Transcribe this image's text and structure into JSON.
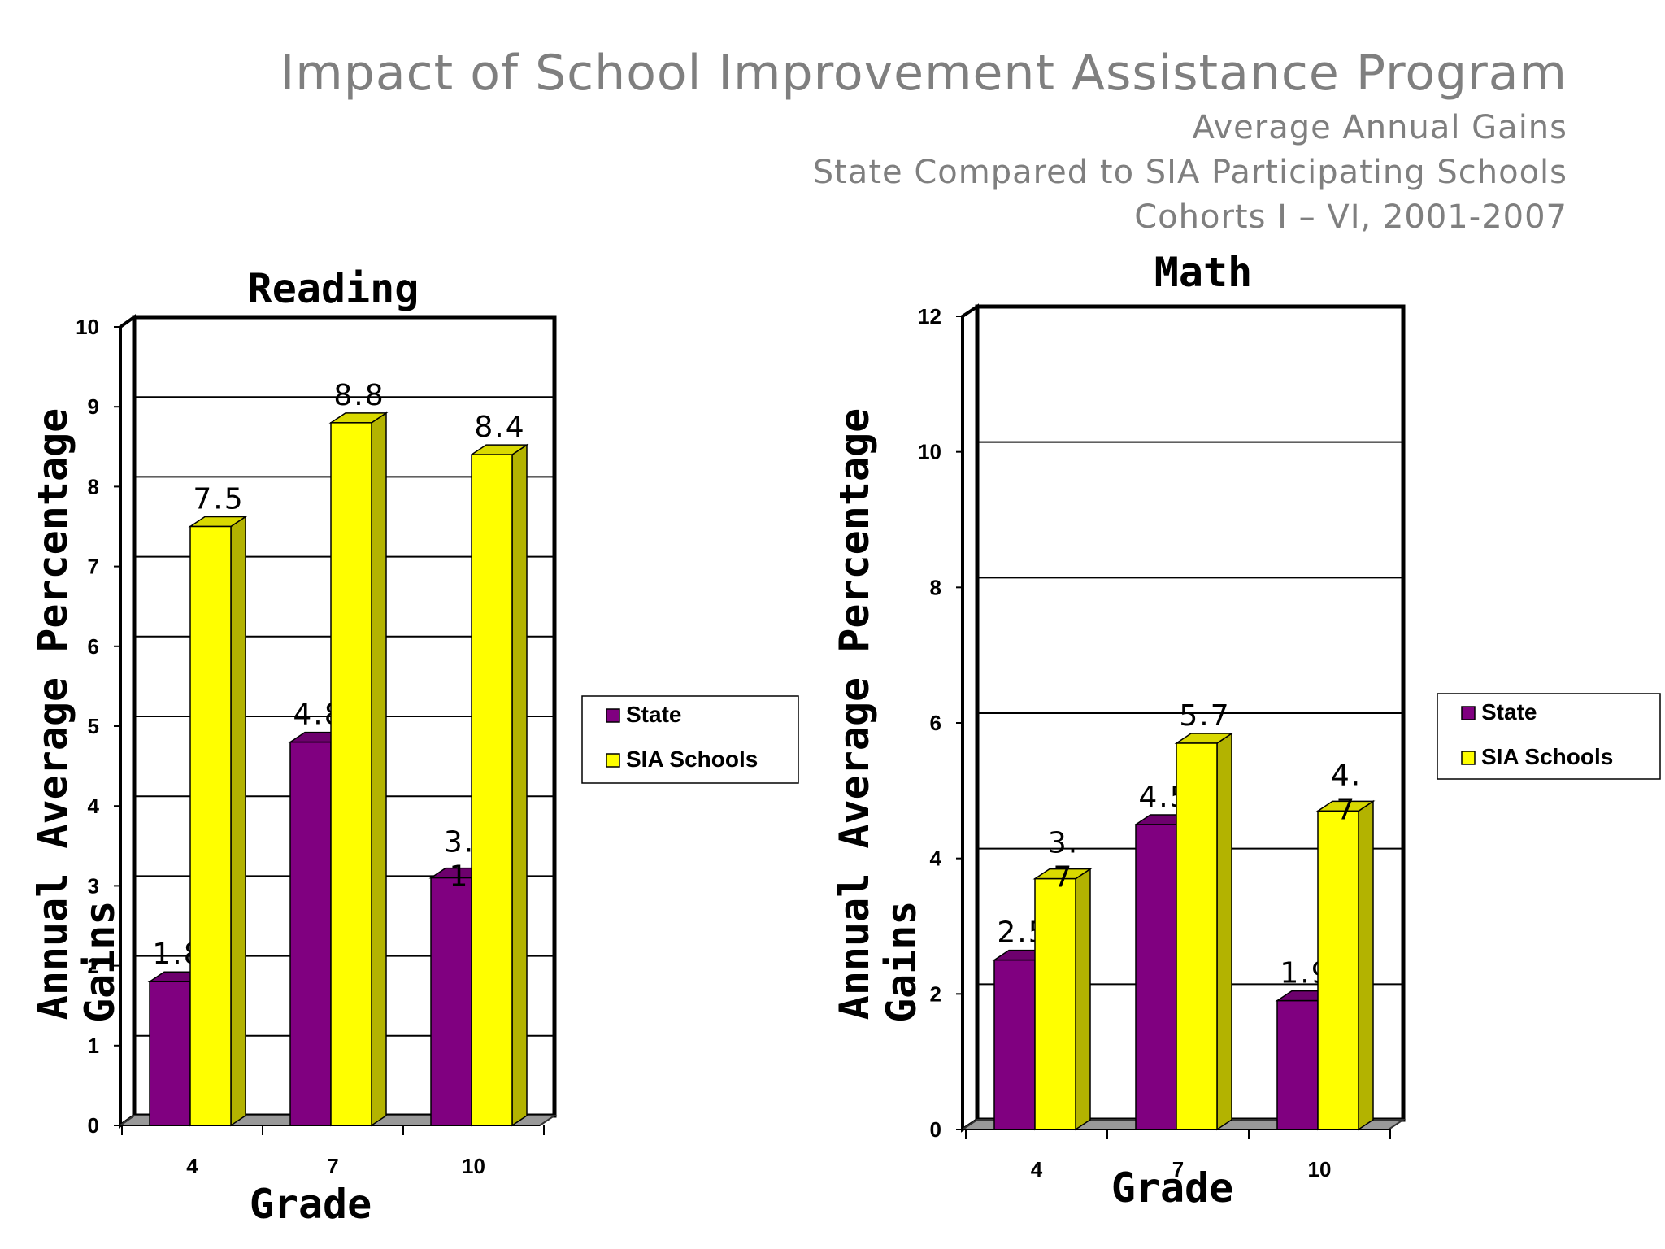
{
  "header": {
    "title": "Impact of School Improvement Assistance Program",
    "subtitle_lines": [
      "Average Annual Gains",
      "State Compared to SIA Participating Schools",
      "Cohorts I – VI, 2001-2007"
    ]
  },
  "colors": {
    "state": "#800080",
    "sia": "#ffff00"
  },
  "chart_data": [
    {
      "type": "bar",
      "title": "Reading",
      "xlabel": "Grade",
      "ylabel": "Annual Average Percentage Gains",
      "categories": [
        "4",
        "7",
        "10"
      ],
      "series": [
        {
          "name": "State",
          "values": [
            1.8,
            4.8,
            3.1
          ],
          "labels": [
            "1.8",
            "4.8",
            "3.\n1"
          ]
        },
        {
          "name": "SIA Schools",
          "values": [
            7.5,
            8.8,
            8.4
          ],
          "labels": [
            "7.5",
            "8.8",
            "8.4"
          ]
        }
      ],
      "ylim": [
        0,
        10
      ],
      "yticks": [
        0,
        1,
        2,
        3,
        4,
        5,
        6,
        7,
        8,
        9,
        10
      ],
      "grid": true,
      "legend": "right"
    },
    {
      "type": "bar",
      "title": "Math",
      "xlabel": "Grade",
      "ylabel": "Annual Average Percentage Gains",
      "categories": [
        "4",
        "7",
        "10"
      ],
      "series": [
        {
          "name": "State",
          "values": [
            2.5,
            4.5,
            1.9
          ],
          "labels": [
            "2.5",
            "4.5",
            "1.9"
          ]
        },
        {
          "name": "SIA Schools",
          "values": [
            3.7,
            5.7,
            4.7
          ],
          "labels": [
            "3.\n7",
            "5.7",
            "4.\n7"
          ]
        }
      ],
      "ylim": [
        0,
        12
      ],
      "yticks": [
        0,
        2,
        4,
        6,
        8,
        10,
        12
      ],
      "grid": true,
      "legend": "right"
    }
  ]
}
